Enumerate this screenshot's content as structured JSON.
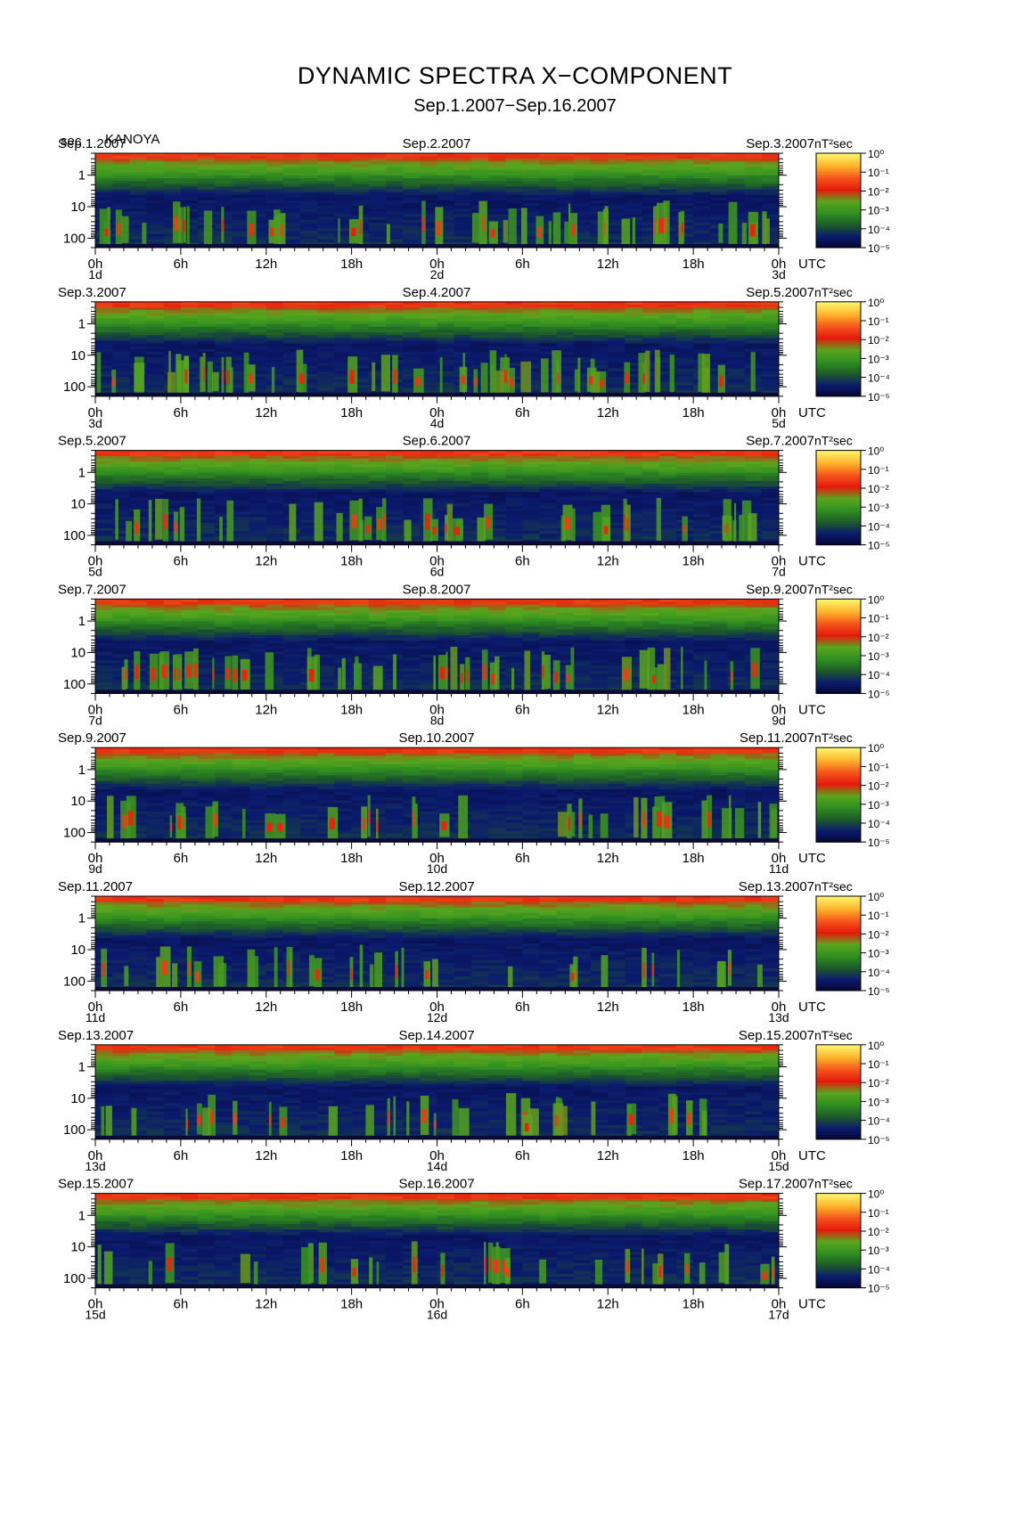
{
  "title": "DYNAMIC SPECTRA X−COMPONENT",
  "subtitle": "Sep.1.2007−Sep.16.2007",
  "y_unit": "sec",
  "station": "KANOYA",
  "colorbar_unit": "nT²sec",
  "time_zone": "UTC",
  "chart_data": {
    "type": "heatmap",
    "title": "DYNAMIC SPECTRA X−COMPONENT",
    "subtitle": "Sep.1.2007−Sep.16.2007",
    "ylabel": "sec",
    "y_scale": "log",
    "y_inverted": true,
    "y_ticks": [
      "1",
      "10",
      "100"
    ],
    "x_ticks": [
      "0h",
      "6h",
      "12h",
      "18h",
      "0h",
      "6h",
      "12h",
      "18h",
      "0h"
    ],
    "x_range_hours": [
      0,
      48
    ],
    "colorbar": {
      "unit": "nT²sec",
      "scale": "log",
      "ticks": [
        "10⁰",
        "10⁻¹",
        "10⁻²",
        "10⁻³",
        "10⁻⁴",
        "10⁻⁵"
      ],
      "range": [
        "1e-5",
        "1e0"
      ],
      "colormap": [
        "#05052b",
        "#0b1a6e",
        "#1d5a2a",
        "#2f8f20",
        "#5aa51e",
        "#e51a0c",
        "#f5561b",
        "#ffb32a",
        "#fff36a"
      ]
    },
    "panels": [
      {
        "date_left": "Sep.1.2007",
        "date_mid": "Sep.2.2007",
        "date_right": "Sep.3.2007",
        "day_labels": [
          "1d",
          "2d",
          "3d"
        ],
        "activity": 0.75
      },
      {
        "date_left": "Sep.3.2007",
        "date_mid": "Sep.4.2007",
        "date_right": "Sep.5.2007",
        "day_labels": [
          "3d",
          "4d",
          "5d"
        ],
        "activity": 0.9
      },
      {
        "date_left": "Sep.5.2007",
        "date_mid": "Sep.6.2007",
        "date_right": "Sep.7.2007",
        "day_labels": [
          "5d",
          "6d",
          "7d"
        ],
        "activity": 0.7
      },
      {
        "date_left": "Sep.7.2007",
        "date_mid": "Sep.8.2007",
        "date_right": "Sep.9.2007",
        "day_labels": [
          "7d",
          "8d",
          "9d"
        ],
        "activity": 0.75
      },
      {
        "date_left": "Sep.9.2007",
        "date_mid": "Sep.10.2007",
        "date_right": "Sep.11.2007",
        "day_labels": [
          "9d",
          "10d",
          "11d"
        ],
        "activity": 0.55
      },
      {
        "date_left": "Sep.11.2007",
        "date_mid": "Sep.12.2007",
        "date_right": "Sep.13.2007",
        "day_labels": [
          "11d",
          "12d",
          "13d"
        ],
        "activity": 0.5
      },
      {
        "date_left": "Sep.13.2007",
        "date_mid": "Sep.14.2007",
        "date_right": "Sep.15.2007",
        "day_labels": [
          "13d",
          "14d",
          "15d"
        ],
        "activity": 0.5
      },
      {
        "date_left": "Sep.15.2007",
        "date_mid": "Sep.16.2007",
        "date_right": "Sep.17.2007",
        "day_labels": [
          "15d",
          "16d",
          "17d"
        ],
        "activity": 0.45
      }
    ]
  }
}
